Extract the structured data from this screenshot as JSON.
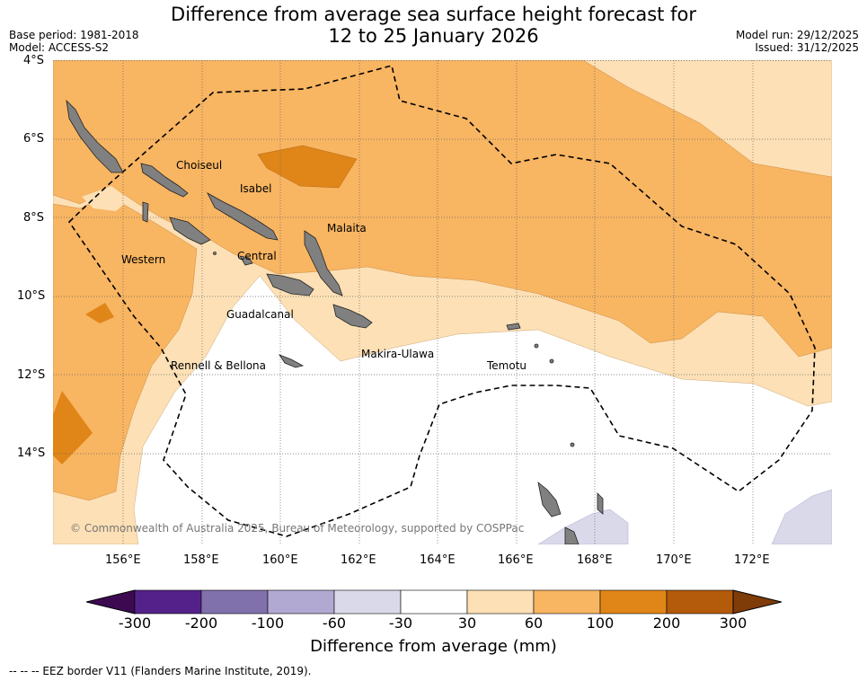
{
  "header": {
    "title_line1": "Difference from average sea surface height forecast for",
    "title_line2": "12 to 25 January 2026",
    "base_period": "Base period: 1981-2018",
    "model": "Model: ACCESS-S2",
    "model_run": "Model run: 29/12/2025",
    "issued": "Issued: 31/12/2025"
  },
  "map": {
    "lat_labels": [
      "4°S",
      "6°S",
      "8°S",
      "10°S",
      "12°S",
      "14°S"
    ],
    "lon_labels": [
      "156°E",
      "158°E",
      "160°E",
      "162°E",
      "164°E",
      "166°E",
      "168°E",
      "170°E",
      "172°E"
    ],
    "regions": [
      "Choiseul",
      "Isabel",
      "Malaita",
      "Western",
      "Central",
      "Guadalcanal",
      "Makira-Ulawa",
      "Temotu",
      "Rennell & Bellona"
    ],
    "copyright": "© Commonwealth of Australia 2025, Bureau of Meteorology, supported by COSPPac"
  },
  "colorbar": {
    "title": "Difference from average (mm)",
    "ticks": [
      "-300",
      "-200",
      "-100",
      "-60",
      "-30",
      "30",
      "60",
      "100",
      "200",
      "300"
    ],
    "colors": {
      "below_min": "#3d0a52",
      "c_m300_m200": "#54218a",
      "c_m200_m100": "#8070ac",
      "c_m100_m60": "#b2a9d2",
      "c_m60_m30": "#d9d9ea",
      "c_m30_30": "#ffffff",
      "c_30_60": "#fde0b5",
      "c_60_100": "#f8b562",
      "c_100_200": "#e08518",
      "c_200_300": "#b45a0b",
      "above_max": "#7f3b08"
    }
  },
  "legend": {
    "eez_text": "--  --  -- EEZ border V11 (Flanders Marine Institute, 2019)."
  }
}
